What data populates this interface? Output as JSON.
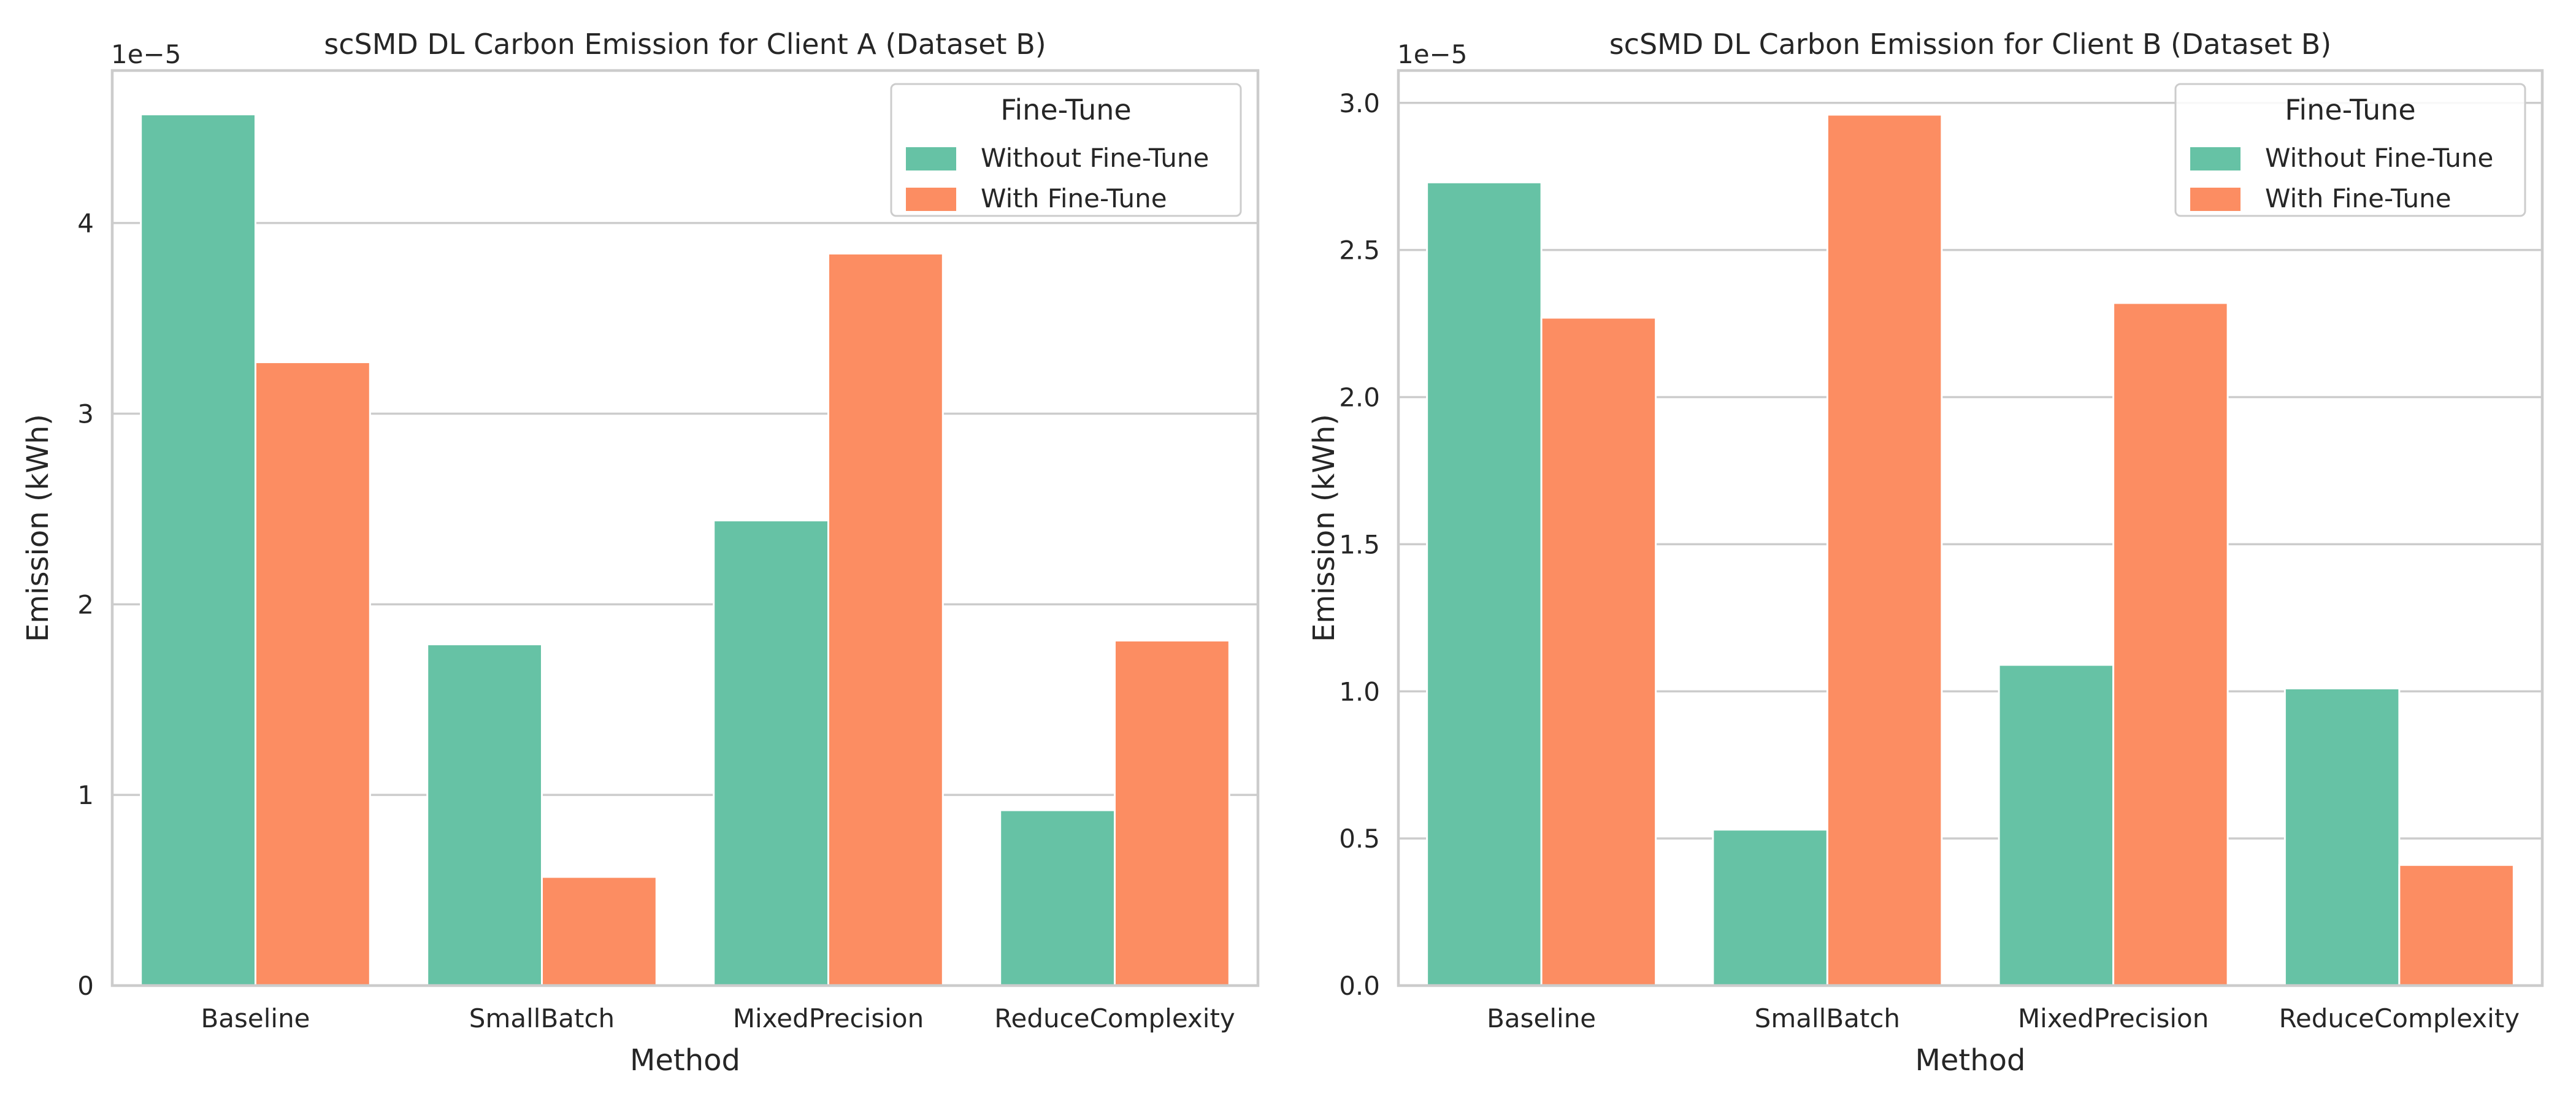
{
  "chart_data": [
    {
      "type": "bar",
      "title": "scSMD DL Carbon Emission for Client A (Dataset B)",
      "xlabel": "Method",
      "ylabel": "Emission (kWh)",
      "y_offset_label": "1e−5",
      "categories": [
        "Baseline",
        "SmallBatch",
        "MixedPrecision",
        "ReduceComplexity"
      ],
      "yticks": [
        0,
        1,
        2,
        3,
        4
      ],
      "ytick_labels": [
        "0",
        "1",
        "2",
        "3",
        "4"
      ],
      "ylim": [
        0,
        4.8
      ],
      "grid": true,
      "legend": {
        "title": "Fine-Tune",
        "placement": "top-right"
      },
      "series": [
        {
          "name": "Without Fine-Tune",
          "color": "#66c2a5",
          "values": [
            4.57,
            1.79,
            2.44,
            0.92
          ]
        },
        {
          "name": "With Fine-Tune",
          "color": "#fc8d62",
          "values": [
            3.27,
            0.57,
            3.84,
            1.81
          ]
        }
      ]
    },
    {
      "type": "bar",
      "title": "scSMD DL Carbon Emission for Client B (Dataset B)",
      "xlabel": "Method",
      "ylabel": "Emission (kWh)",
      "y_offset_label": "1e−5",
      "categories": [
        "Baseline",
        "SmallBatch",
        "MixedPrecision",
        "ReduceComplexity"
      ],
      "yticks": [
        0.0,
        0.5,
        1.0,
        1.5,
        2.0,
        2.5,
        3.0
      ],
      "ytick_labels": [
        "0.0",
        "0.5",
        "1.0",
        "1.5",
        "2.0",
        "2.5",
        "3.0"
      ],
      "ylim": [
        0,
        3.11
      ],
      "grid": true,
      "legend": {
        "title": "Fine-Tune",
        "placement": "top-right"
      },
      "series": [
        {
          "name": "Without Fine-Tune",
          "color": "#66c2a5",
          "values": [
            2.73,
            0.53,
            1.09,
            1.01
          ]
        },
        {
          "name": "With Fine-Tune",
          "color": "#fc8d62",
          "values": [
            2.27,
            2.96,
            2.32,
            0.41
          ]
        }
      ]
    }
  ]
}
